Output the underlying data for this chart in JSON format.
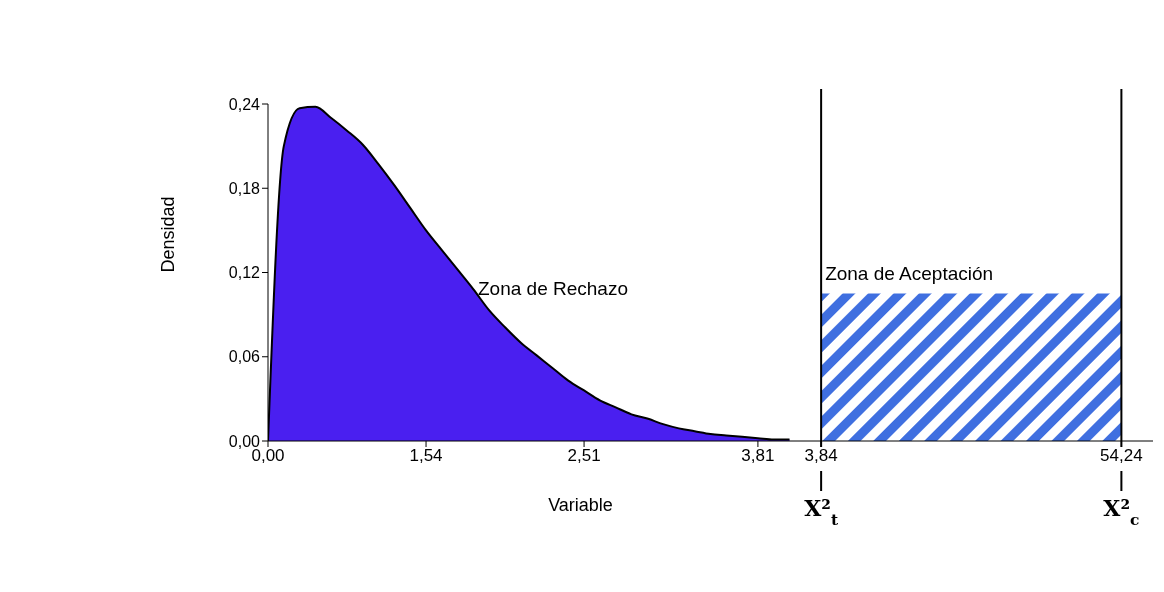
{
  "chart_data": {
    "type": "area",
    "xlabel": "Variable",
    "ylabel": "Densidad",
    "categories": [
      "0,00",
      null,
      null,
      null,
      null,
      null,
      null,
      null,
      null,
      null,
      "1,54",
      null,
      null,
      null,
      null,
      null,
      null,
      null,
      null,
      null,
      "2,51",
      null,
      null,
      null,
      null,
      null,
      null,
      null,
      null,
      null,
      null,
      "3,81",
      null,
      null,
      null,
      "3,84",
      null,
      null,
      null,
      null,
      null,
      null,
      null,
      null,
      null,
      null,
      null,
      null,
      null,
      null,
      null,
      null,
      null,
      null,
      "54,24"
    ],
    "series": [
      {
        "color": "#4a1ff0",
        "values": [
          0,
          0.21,
          0.237,
          0.238,
          0.23,
          0.221,
          0.211,
          0.197,
          0.182,
          0.166,
          0.15,
          0.136,
          0.122,
          0.108,
          0.093,
          0.081,
          0.07,
          0.061,
          0.052,
          0.043,
          0.036,
          0.029,
          0.024,
          0.019,
          0.016,
          0.012,
          0.009,
          0.007,
          0.005,
          0.004,
          0.003,
          0.002,
          0.001,
          0.001,
          null,
          null,
          null,
          null,
          null,
          null,
          null,
          null,
          null,
          null,
          null,
          null,
          null,
          null,
          null,
          null,
          null,
          null,
          null,
          null,
          null
        ]
      },
      {
        "color": "#3f6fe0",
        "values": [
          null,
          null,
          null,
          null,
          null,
          null,
          null,
          null,
          null,
          null,
          null,
          null,
          null,
          null,
          null,
          null,
          null,
          null,
          null,
          null,
          null,
          null,
          null,
          null,
          null,
          null,
          null,
          null,
          null,
          null,
          null,
          null,
          null,
          null,
          null,
          0.105,
          0.105,
          0.105,
          0.105,
          0.105,
          0.105,
          0.105,
          0.105,
          0.105,
          0.105,
          0.105,
          0.105,
          0.105,
          0.105,
          0.105,
          0.105,
          0.105,
          0.105,
          0.105,
          0.105
        ]
      }
    ],
    "ylim": [
      0,
      0.24
    ],
    "yticks": [
      {
        "value": 0,
        "label": "0,00"
      },
      {
        "value": 0.06,
        "label": "0,06"
      },
      {
        "value": 0.12,
        "label": "0,12"
      },
      {
        "value": 0.18,
        "label": "0,18"
      },
      {
        "value": 0.24,
        "label": "0,24"
      }
    ],
    "ref_lines": [
      {
        "axis": "x",
        "value": "3,84",
        "label": "X²$_{t}$"
      },
      {
        "axis": "x",
        "value": "54,24",
        "label": "X²$_{c}$"
      }
    ],
    "annotations": [
      "Zona de Rechazo",
      {
        "text": "Zona de Aceptación",
        "x": "3,84",
        "y": 0.105
      }
    ]
  }
}
